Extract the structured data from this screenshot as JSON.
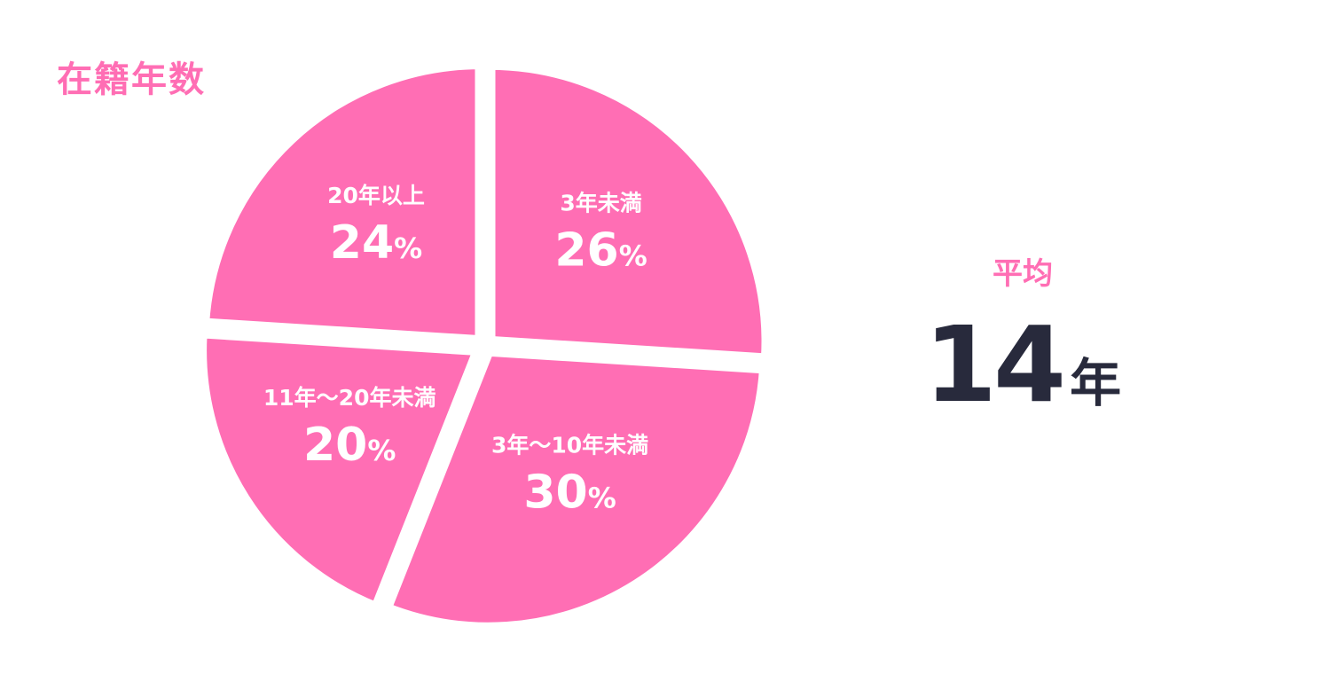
{
  "chart_data": {
    "type": "pie",
    "title": "在籍年数",
    "unit": "%",
    "start_at": "top",
    "direction": "clockwise",
    "slices": [
      {
        "label": "3年未満",
        "value": 26
      },
      {
        "label": "3年～10年未満",
        "value": 30
      },
      {
        "label": "11年～20年未満",
        "value": 20
      },
      {
        "label": "20年以上",
        "value": 24
      }
    ],
    "colors": {
      "slice": "#ff6eb4",
      "label_text": "#ffffff",
      "separator": "#ffffff"
    }
  },
  "average": {
    "label": "平均",
    "value": "14",
    "unit": "年",
    "color": "#282a3c"
  }
}
